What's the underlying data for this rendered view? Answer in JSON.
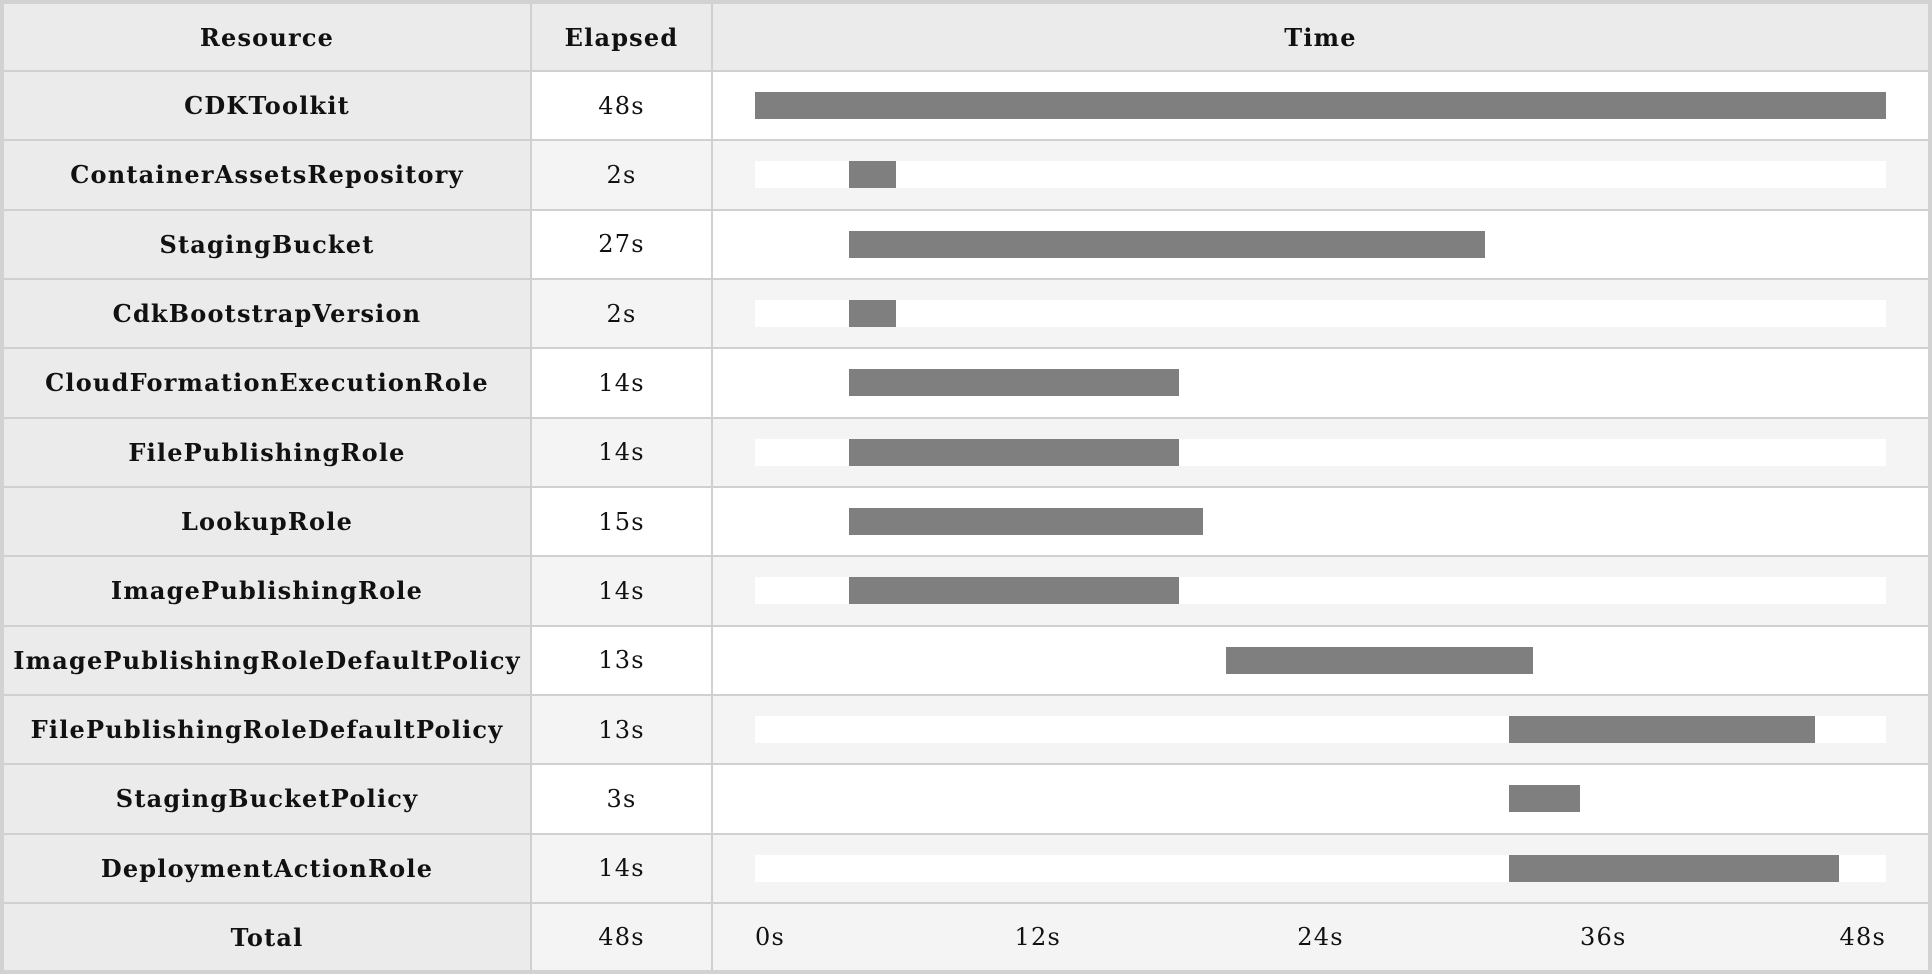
{
  "header": {
    "resource": "Resource",
    "elapsed": "Elapsed",
    "time": "Time"
  },
  "chart_data": {
    "type": "gantt",
    "unit": "s",
    "xlim": [
      0,
      48
    ],
    "ticks": [
      "0s",
      "12s",
      "24s",
      "36s",
      "48s"
    ],
    "tick_values": [
      0,
      12,
      24,
      36,
      48
    ],
    "bar_color": "#7f7f7f",
    "rows": [
      {
        "name": "CDKToolkit",
        "elapsed": "48s",
        "start": 0,
        "end": 48
      },
      {
        "name": "ContainerAssetsRepository",
        "elapsed": "2s",
        "start": 4,
        "end": 6
      },
      {
        "name": "StagingBucket",
        "elapsed": "27s",
        "start": 4,
        "end": 31
      },
      {
        "name": "CdkBootstrapVersion",
        "elapsed": "2s",
        "start": 4,
        "end": 6
      },
      {
        "name": "CloudFormationExecutionRole",
        "elapsed": "14s",
        "start": 4,
        "end": 18
      },
      {
        "name": "FilePublishingRole",
        "elapsed": "14s",
        "start": 4,
        "end": 18
      },
      {
        "name": "LookupRole",
        "elapsed": "15s",
        "start": 4,
        "end": 19
      },
      {
        "name": "ImagePublishingRole",
        "elapsed": "14s",
        "start": 4,
        "end": 18
      },
      {
        "name": "ImagePublishingRoleDefaultPolicy",
        "elapsed": "13s",
        "start": 20,
        "end": 33
      },
      {
        "name": "FilePublishingRoleDefaultPolicy",
        "elapsed": "13s",
        "start": 32,
        "end": 45
      },
      {
        "name": "StagingBucketPolicy",
        "elapsed": "3s",
        "start": 32,
        "end": 35
      },
      {
        "name": "DeploymentActionRole",
        "elapsed": "14s",
        "start": 32,
        "end": 46
      }
    ],
    "total": {
      "label": "Total",
      "elapsed": "48s"
    }
  }
}
